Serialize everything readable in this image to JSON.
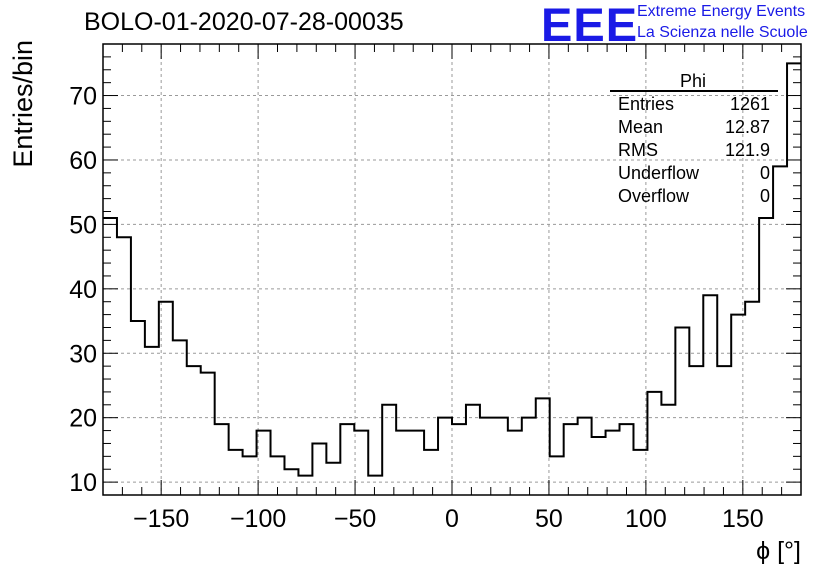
{
  "title": "BOLO-01-2020-07-28-00035",
  "logo": {
    "mark": "EEE",
    "line1": "Extreme Energy Events",
    "line2": "La Scienza nelle Scuole",
    "color": "#1a1ae6"
  },
  "stats_box": {
    "name": "Phi",
    "rows": [
      {
        "label": "Entries",
        "value": "1261"
      },
      {
        "label": "Mean",
        "value": "12.87"
      },
      {
        "label": "RMS",
        "value": "121.9"
      },
      {
        "label": "Underflow",
        "value": "0"
      },
      {
        "label": "Overflow",
        "value": "0"
      }
    ]
  },
  "chart_data": {
    "type": "histogram",
    "xlabel": "ϕ [°]",
    "ylabel": "Entries/bin",
    "xlim": [
      -180,
      180
    ],
    "ylim": [
      8,
      78
    ],
    "bin_width": 7.2,
    "bin_edges_start": -180,
    "xticks": [
      -150,
      -100,
      -50,
      0,
      50,
      100,
      150
    ],
    "yticks": [
      10,
      20,
      30,
      40,
      50,
      60,
      70
    ],
    "grid": true,
    "line_color": "#000000",
    "values": [
      51,
      48,
      35,
      31,
      38,
      32,
      28,
      27,
      19,
      15,
      14,
      18,
      14,
      12,
      11,
      16,
      13,
      19,
      18,
      11,
      22,
      18,
      18,
      15,
      20,
      19,
      22,
      20,
      20,
      18,
      20,
      23,
      14,
      19,
      20,
      17,
      18,
      19,
      15,
      24,
      22,
      34,
      28,
      39,
      28,
      36,
      38,
      51,
      59,
      75
    ]
  }
}
